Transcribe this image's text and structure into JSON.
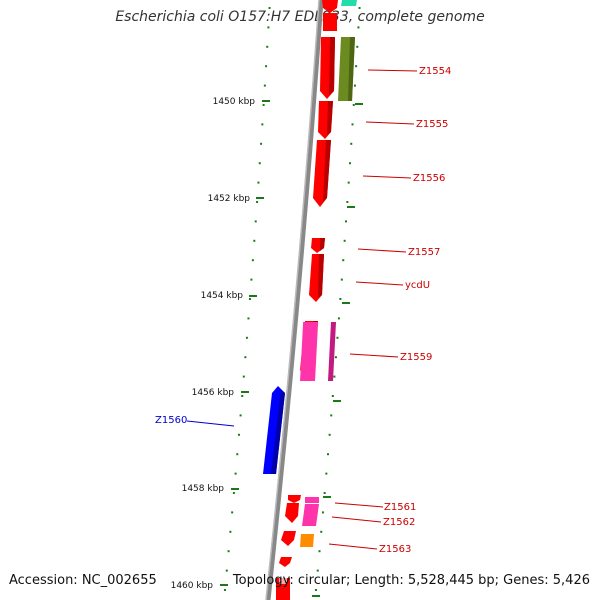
{
  "title": "Escherichia coli O157:H7 EDL933, complete genome",
  "footer": {
    "accession": "Accession: NC_002655",
    "topology": "Topology: circular; Length: 5,528,445 bp; Genes: 5,426"
  },
  "colors": {
    "backbone": "#888888",
    "tick": "#1a7a1a",
    "label_red": "#cc0000",
    "label_blue": "#0000cc",
    "gene_red": "#ff0000",
    "gene_pink": "#ff33aa",
    "gene_olive": "#6b8a1f",
    "gene_blue": "#0000ff",
    "gene_orange": "#ff8c00",
    "gene_teal": "#22ddaa"
  },
  "scale_ticks": [
    {
      "label": "1450 kbp"
    },
    {
      "label": "1452 kbp"
    },
    {
      "label": "1454 kbp"
    },
    {
      "label": "1456 kbp"
    },
    {
      "label": "1458 kbp"
    },
    {
      "label": "1460 kbp"
    }
  ],
  "gene_labels": [
    {
      "text": "Z1554",
      "color": "label_red"
    },
    {
      "text": "Z1555",
      "color": "label_red"
    },
    {
      "text": "Z1556",
      "color": "label_red"
    },
    {
      "text": "Z1557",
      "color": "label_red"
    },
    {
      "text": "ycdU",
      "color": "label_red"
    },
    {
      "text": "Z1559",
      "color": "label_red"
    },
    {
      "text": "Z1560",
      "color": "label_blue"
    },
    {
      "text": "Z1561",
      "color": "label_red"
    },
    {
      "text": "Z1562",
      "color": "label_red"
    },
    {
      "text": "Z1563",
      "color": "label_red"
    }
  ]
}
